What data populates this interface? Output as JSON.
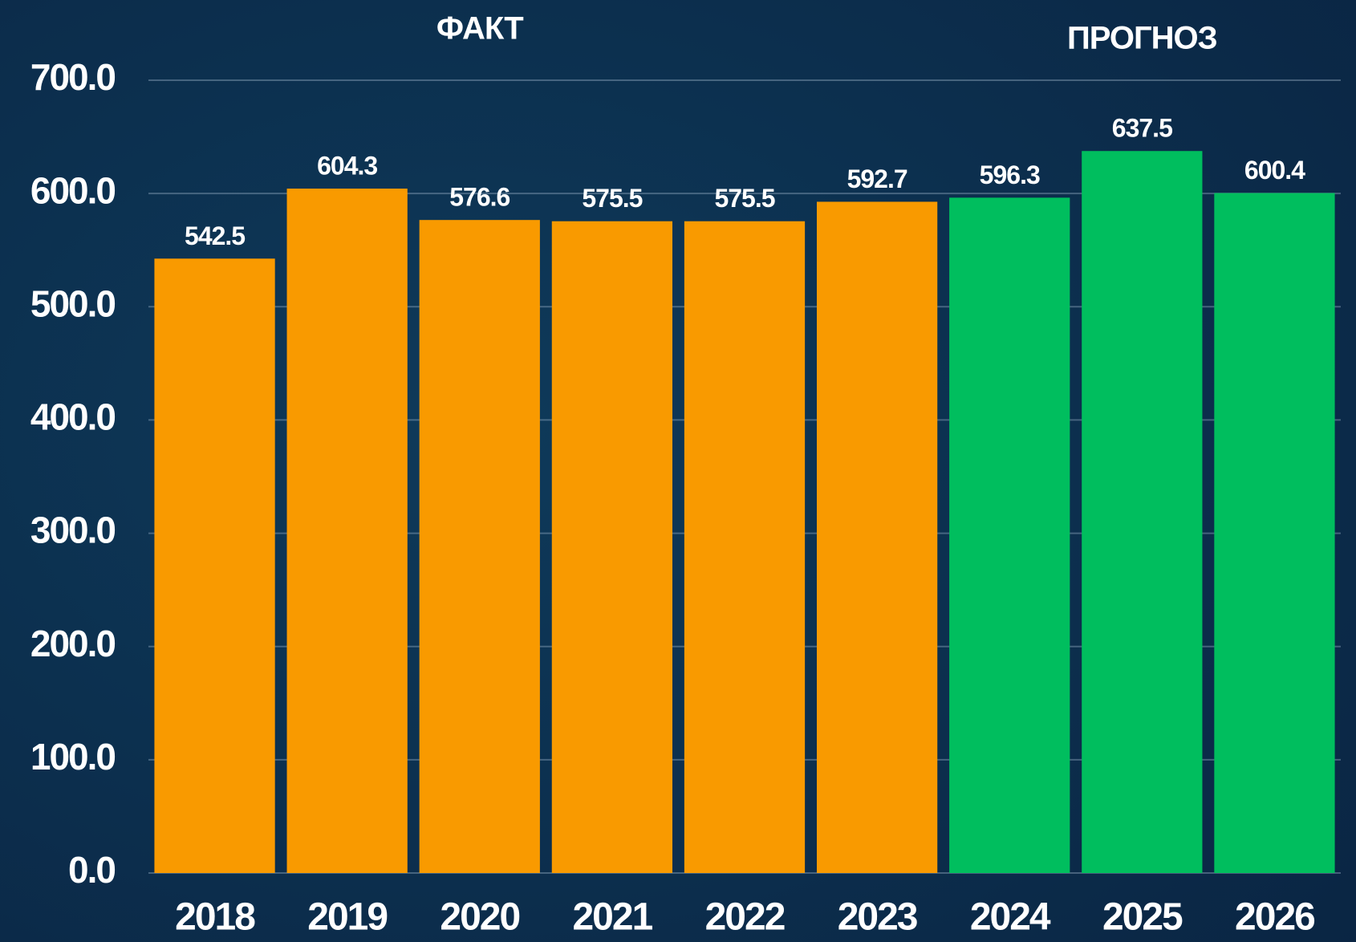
{
  "chart_data": {
    "type": "bar",
    "annotations": [
      "ФАКТ",
      "ПРОГНОЗ"
    ],
    "categories": [
      "2018",
      "2019",
      "2020",
      "2021",
      "2022",
      "2023",
      "2024",
      "2025",
      "2026"
    ],
    "values": [
      542.5,
      604.3,
      576.6,
      575.5,
      575.5,
      592.7,
      596.3,
      637.5,
      600.4
    ],
    "colors": [
      "#f99a00",
      "#f99a00",
      "#f99a00",
      "#f99a00",
      "#f99a00",
      "#f99a00",
      "#00be5e",
      "#00be5e",
      "#00be5e"
    ],
    "ylim": [
      0,
      700
    ],
    "yticks": [
      {
        "value": 0,
        "label": "0.0"
      },
      {
        "value": 100,
        "label": "100.0"
      },
      {
        "value": 200,
        "label": "200.0"
      },
      {
        "value": 300,
        "label": "300.0"
      },
      {
        "value": 400,
        "label": "400.0"
      },
      {
        "value": 500,
        "label": "500.0"
      },
      {
        "value": 600,
        "label": "600.0"
      },
      {
        "value": 700,
        "label": "700.0"
      }
    ],
    "grid": true
  }
}
